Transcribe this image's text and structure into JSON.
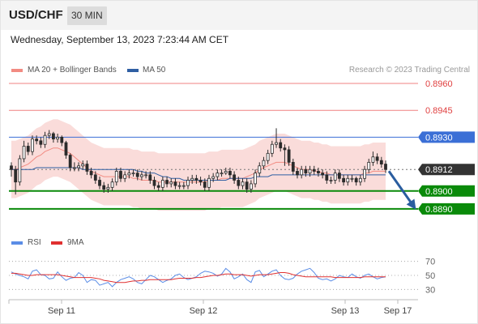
{
  "header": {
    "symbol": "USD/CHF",
    "timeframe": "30 MIN"
  },
  "datetime": "Wednesday, September 13, 2023 7:23:44 AM CET",
  "legend": {
    "ma": {
      "label": "MA 20 + Bollinger Bands",
      "color": "#f28b82"
    },
    "ma50": {
      "label": "MA 50",
      "color": "#2f5fa3"
    },
    "credit": "Research © 2023 Trading Central"
  },
  "rsi_legend": {
    "rsi": {
      "label": "RSI",
      "color": "#5b8de6"
    },
    "ma9": {
      "label": "9MA",
      "color": "#e03030"
    }
  },
  "colors": {
    "bull": "#ffffff",
    "bear": "#2b2b2b",
    "band": "#f9d6d4",
    "support": "#0a8a0a",
    "resistance_blue": "#3b6fd6",
    "resistance_red": "#f08080",
    "current": "#333333",
    "arrow": "#2a5d9f"
  },
  "chart_data": [
    {
      "type": "candlestick",
      "x_labels": [
        "Sep 11",
        "Sep 12",
        "Sep 13",
        "Sep 17"
      ],
      "ylim": [
        0.888,
        0.8965
      ],
      "levels": [
        {
          "label": "0.8960",
          "value": 0.896,
          "kind": "resistance_red"
        },
        {
          "label": "0.8945",
          "value": 0.8945,
          "kind": "resistance_red"
        },
        {
          "label": "0.8930",
          "value": 0.893,
          "kind": "resistance_blue"
        },
        {
          "label": "0.8912",
          "value": 0.8912,
          "kind": "current"
        },
        {
          "label": "0.8900",
          "value": 0.89,
          "kind": "support"
        },
        {
          "label": "0.8890",
          "value": 0.889,
          "kind": "support"
        }
      ],
      "forecast": {
        "from": 0.8912,
        "to": 0.889
      },
      "close": [
        0.8912,
        0.8905,
        0.8918,
        0.8925,
        0.8922,
        0.8929,
        0.8928,
        0.8926,
        0.8931,
        0.8932,
        0.8929,
        0.893,
        0.8927,
        0.892,
        0.8913,
        0.8913,
        0.8914,
        0.8915,
        0.8911,
        0.8909,
        0.8906,
        0.8903,
        0.8901,
        0.8902,
        0.8905,
        0.8911,
        0.8907,
        0.8909,
        0.891,
        0.891,
        0.8908,
        0.8909,
        0.8909,
        0.8906,
        0.8903,
        0.8902,
        0.8906,
        0.8904,
        0.8905,
        0.8903,
        0.8903,
        0.8903,
        0.8906,
        0.8907,
        0.8906,
        0.8905,
        0.8902,
        0.8907,
        0.8908,
        0.891,
        0.891,
        0.8911,
        0.8909,
        0.8906,
        0.8903,
        0.8905,
        0.8901,
        0.8904,
        0.891,
        0.8914,
        0.8917,
        0.8921,
        0.8926,
        0.8927,
        0.8924,
        0.8923,
        0.8916,
        0.8911,
        0.8909,
        0.8912,
        0.891,
        0.8912,
        0.8911,
        0.891,
        0.8909,
        0.8906,
        0.8906,
        0.891,
        0.8907,
        0.8905,
        0.8907,
        0.8907,
        0.8905,
        0.8907,
        0.8912,
        0.8916,
        0.8919,
        0.8917,
        0.8915,
        0.8912
      ],
      "open": [
        0.8914,
        0.8912,
        0.8905,
        0.8918,
        0.8925,
        0.8922,
        0.8929,
        0.8928,
        0.8926,
        0.8931,
        0.8932,
        0.8929,
        0.893,
        0.8927,
        0.892,
        0.8913,
        0.8913,
        0.8914,
        0.8915,
        0.8911,
        0.8909,
        0.8906,
        0.8903,
        0.8901,
        0.8902,
        0.8905,
        0.8911,
        0.8907,
        0.8909,
        0.891,
        0.891,
        0.8908,
        0.8909,
        0.8909,
        0.8906,
        0.8903,
        0.8902,
        0.8906,
        0.8904,
        0.8905,
        0.8903,
        0.8903,
        0.8903,
        0.8906,
        0.8907,
        0.8906,
        0.8905,
        0.8902,
        0.8907,
        0.8908,
        0.891,
        0.891,
        0.8911,
        0.8909,
        0.8906,
        0.8903,
        0.8905,
        0.8901,
        0.8904,
        0.891,
        0.8914,
        0.8917,
        0.8921,
        0.8926,
        0.8927,
        0.8924,
        0.8923,
        0.8916,
        0.8911,
        0.8909,
        0.8912,
        0.891,
        0.8912,
        0.8911,
        0.891,
        0.8909,
        0.8906,
        0.8906,
        0.891,
        0.8907,
        0.8905,
        0.8907,
        0.8907,
        0.8905,
        0.8907,
        0.8912,
        0.8916,
        0.8919,
        0.8917,
        0.8915
      ],
      "high": [
        0.8916,
        0.8914,
        0.892,
        0.8928,
        0.8927,
        0.8931,
        0.8931,
        0.893,
        0.8933,
        0.8934,
        0.8933,
        0.8932,
        0.8931,
        0.8928,
        0.8921,
        0.8916,
        0.8916,
        0.8917,
        0.8917,
        0.8913,
        0.8911,
        0.8908,
        0.8905,
        0.8904,
        0.8907,
        0.8913,
        0.8913,
        0.8911,
        0.8912,
        0.8912,
        0.8912,
        0.8911,
        0.8911,
        0.8911,
        0.8908,
        0.8905,
        0.8908,
        0.8908,
        0.8907,
        0.8907,
        0.8905,
        0.8905,
        0.8908,
        0.8909,
        0.8909,
        0.8908,
        0.8907,
        0.8909,
        0.891,
        0.8912,
        0.8912,
        0.8913,
        0.8913,
        0.8911,
        0.8908,
        0.8907,
        0.8907,
        0.8906,
        0.8912,
        0.8916,
        0.8919,
        0.8923,
        0.8928,
        0.8935,
        0.8929,
        0.8926,
        0.8925,
        0.8918,
        0.8913,
        0.8914,
        0.8914,
        0.8914,
        0.8914,
        0.8913,
        0.8912,
        0.8911,
        0.8908,
        0.8912,
        0.8912,
        0.8909,
        0.8909,
        0.8909,
        0.8908,
        0.8909,
        0.8914,
        0.8918,
        0.8922,
        0.8921,
        0.8919,
        0.8917
      ],
      "low": [
        0.8908,
        0.8898,
        0.8903,
        0.8916,
        0.892,
        0.892,
        0.8926,
        0.8924,
        0.8924,
        0.8929,
        0.8927,
        0.8927,
        0.8925,
        0.8918,
        0.8911,
        0.8911,
        0.8911,
        0.8912,
        0.8909,
        0.8907,
        0.8904,
        0.8901,
        0.8899,
        0.8899,
        0.89,
        0.8903,
        0.8905,
        0.8905,
        0.8907,
        0.8908,
        0.8906,
        0.8906,
        0.8907,
        0.8904,
        0.8901,
        0.89,
        0.89,
        0.8902,
        0.8902,
        0.8901,
        0.8901,
        0.8901,
        0.8901,
        0.8904,
        0.8904,
        0.8903,
        0.89,
        0.89,
        0.8905,
        0.8906,
        0.8908,
        0.8909,
        0.8907,
        0.8904,
        0.8901,
        0.8901,
        0.8899,
        0.8899,
        0.8902,
        0.8908,
        0.8912,
        0.8915,
        0.8919,
        0.8924,
        0.8922,
        0.8914,
        0.8914,
        0.8909,
        0.8907,
        0.8907,
        0.8908,
        0.8908,
        0.8909,
        0.8908,
        0.8907,
        0.8904,
        0.8904,
        0.8904,
        0.8905,
        0.8903,
        0.8903,
        0.8905,
        0.8903,
        0.8903,
        0.8905,
        0.891,
        0.8914,
        0.8915,
        0.8913,
        0.891
      ],
      "ma20": [
        0.8912,
        0.8912,
        0.8913,
        0.8914,
        0.8915,
        0.8917,
        0.8919,
        0.892,
        0.8922,
        0.8923,
        0.8924,
        0.8924,
        0.8923,
        0.8922,
        0.8921,
        0.8919,
        0.8917,
        0.8915,
        0.8913,
        0.8911,
        0.891,
        0.8909,
        0.8908,
        0.8908,
        0.8908,
        0.8908,
        0.8908,
        0.8908,
        0.8908,
        0.8907,
        0.8907,
        0.8906,
        0.8906,
        0.8906,
        0.8906,
        0.8905,
        0.8905,
        0.8905,
        0.8905,
        0.8905,
        0.8905,
        0.8905,
        0.8905,
        0.8905,
        0.8905,
        0.8905,
        0.8905,
        0.8906,
        0.8906,
        0.8906,
        0.8907,
        0.8907,
        0.8907,
        0.8907,
        0.8907,
        0.8907,
        0.8908,
        0.8909,
        0.891,
        0.8912,
        0.8913,
        0.8914,
        0.8915,
        0.8916,
        0.8916,
        0.8916,
        0.8915,
        0.8914,
        0.8913,
        0.8912,
        0.8912,
        0.8912,
        0.8911,
        0.8911,
        0.891,
        0.891,
        0.8909,
        0.8909,
        0.8909,
        0.8909,
        0.8909,
        0.8909,
        0.8909,
        0.8909,
        0.891,
        0.891,
        0.8911,
        0.8911,
        0.8911,
        0.8911
      ],
      "ma50": [
        0.8912,
        0.8912,
        0.8912,
        0.8912,
        0.8912,
        0.8912,
        0.8913,
        0.8913,
        0.8913,
        0.8913,
        0.8913,
        0.8913,
        0.8913,
        0.8913,
        0.8913,
        0.8913,
        0.8913,
        0.8912,
        0.8912,
        0.8912,
        0.8912,
        0.8912,
        0.8912,
        0.8912,
        0.8912,
        0.8912,
        0.8912,
        0.8912,
        0.8912,
        0.8912,
        0.8911,
        0.8911,
        0.891,
        0.891,
        0.891,
        0.8909,
        0.8908,
        0.8908,
        0.8907,
        0.8907,
        0.8907,
        0.8906,
        0.8906,
        0.8906,
        0.8906,
        0.8906,
        0.8906,
        0.8906,
        0.8906,
        0.8906,
        0.8906,
        0.8906,
        0.8907,
        0.8907,
        0.8907,
        0.8907,
        0.8907,
        0.8907,
        0.8908,
        0.8908,
        0.8908,
        0.8908,
        0.8909,
        0.8909,
        0.8909,
        0.8909,
        0.8909,
        0.8909,
        0.8909,
        0.8909,
        0.8909,
        0.8909,
        0.8909,
        0.8909,
        0.8909,
        0.8909,
        0.8909,
        0.8909,
        0.8909,
        0.8909,
        0.8909,
        0.8909,
        0.8909,
        0.8909,
        0.8909,
        0.8909,
        0.8909,
        0.8909,
        0.8909,
        0.8909
      ],
      "band_width": 0.0016
    },
    {
      "type": "line",
      "name": "RSI",
      "y_ticks": [
        "70",
        "50",
        "30"
      ],
      "ylim": [
        20,
        80
      ],
      "levels": [
        70,
        50,
        30
      ],
      "rsi": [
        55,
        52,
        50,
        48,
        45,
        56,
        58,
        51,
        50,
        45,
        46,
        55,
        48,
        43,
        46,
        47,
        54,
        50,
        40,
        44,
        43,
        36,
        38,
        40,
        34,
        40,
        44,
        46,
        48,
        45,
        40,
        38,
        44,
        50,
        48,
        44,
        40,
        43,
        45,
        50,
        52,
        47,
        44,
        46,
        48,
        53,
        56,
        55,
        53,
        49,
        52,
        60,
        55,
        45,
        48,
        52,
        44,
        40,
        55,
        57,
        48,
        52,
        56,
        58,
        50,
        45,
        44,
        46,
        52,
        56,
        58,
        60,
        54,
        46,
        44,
        45,
        42,
        45,
        50,
        48,
        47,
        52,
        48,
        46,
        50,
        52,
        48,
        45,
        47,
        48
      ],
      "ma9": [
        53,
        53,
        52,
        51,
        50,
        50,
        51,
        51,
        51,
        51,
        51,
        51,
        50,
        49,
        48,
        47,
        47,
        47,
        47,
        47,
        46,
        45,
        43,
        42,
        41,
        40,
        40,
        40,
        41,
        42,
        42,
        43,
        43,
        44,
        44,
        44,
        44,
        44,
        44,
        45,
        46,
        46,
        46,
        46,
        47,
        47,
        48,
        49,
        50,
        50,
        51,
        52,
        52,
        51,
        51,
        51,
        50,
        49,
        50,
        51,
        51,
        51,
        52,
        53,
        54,
        54,
        53,
        51,
        50,
        49,
        48,
        48,
        48,
        48,
        48,
        48,
        48,
        47,
        47,
        47,
        47,
        47,
        47,
        47,
        48,
        48,
        48,
        48,
        48,
        48
      ]
    }
  ]
}
